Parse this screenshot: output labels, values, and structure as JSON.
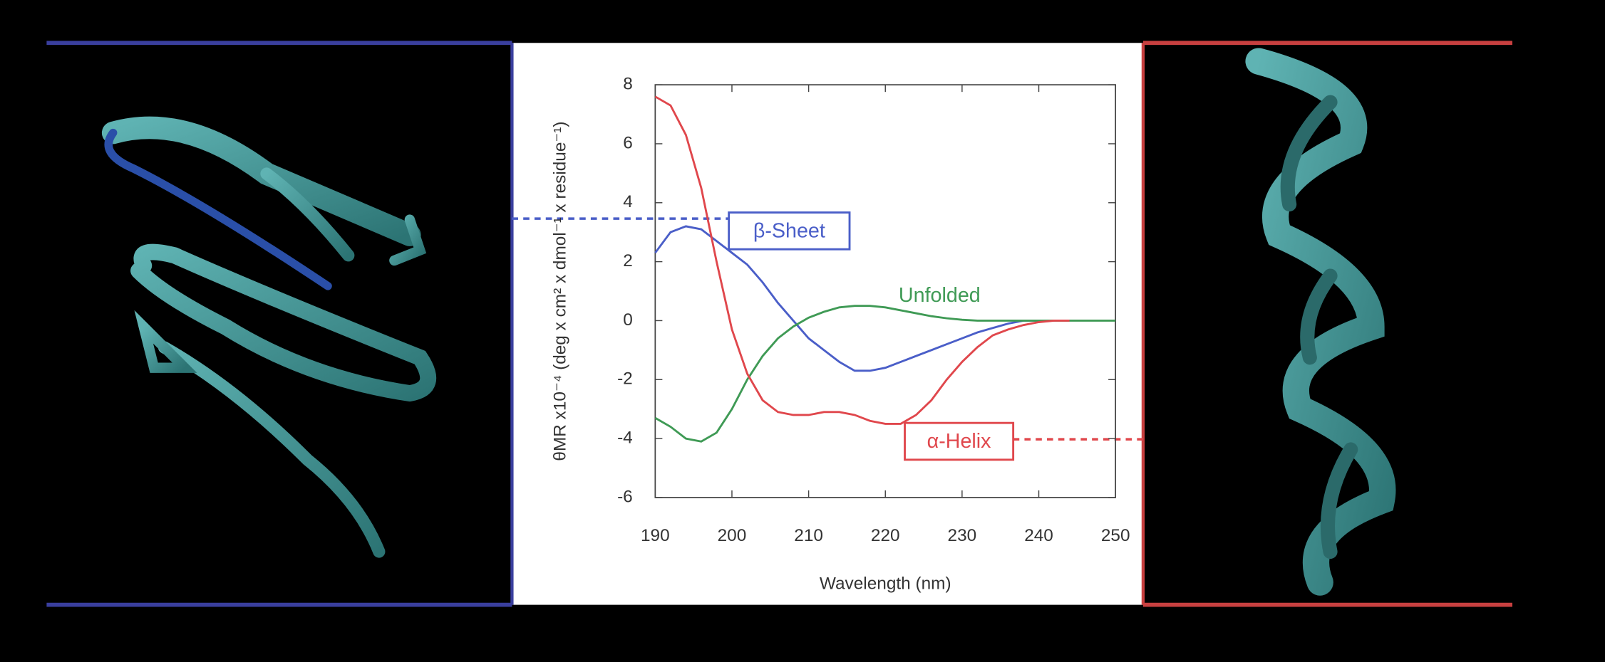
{
  "chart_data": {
    "type": "line",
    "xlabel": "Wavelength (nm)",
    "ylabel": "θMR x10⁻⁴ (deg x cm² x dmol⁻¹ x residue⁻¹)",
    "x": [
      190,
      192,
      194,
      196,
      198,
      200,
      202,
      204,
      206,
      208,
      210,
      212,
      214,
      216,
      218,
      220,
      222,
      224,
      226,
      228,
      230,
      232,
      234,
      236,
      238,
      240,
      242,
      244,
      246,
      248,
      250
    ],
    "series": [
      {
        "name": "β-Sheet",
        "color": "#4a5ec8",
        "values": [
          2.3,
          3.0,
          3.2,
          3.1,
          2.7,
          2.3,
          1.9,
          1.3,
          0.6,
          0,
          -0.6,
          -1.0,
          -1.4,
          -1.7,
          -1.7,
          -1.6,
          -1.4,
          -1.2,
          -1.0,
          -0.8,
          -0.6,
          -0.4,
          -0.25,
          -0.1,
          0,
          0,
          null,
          null,
          null,
          null,
          null
        ]
      },
      {
        "name": "Unfolded",
        "color": "#3f9a55",
        "values": [
          -3.3,
          -3.6,
          -4.0,
          -4.1,
          -3.8,
          -3.0,
          -2.0,
          -1.2,
          -0.6,
          -0.2,
          0.1,
          0.3,
          0.45,
          0.5,
          0.5,
          0.45,
          0.35,
          0.25,
          0.15,
          0.08,
          0.03,
          0,
          0,
          0,
          0,
          0,
          0,
          0,
          0,
          0,
          0
        ]
      },
      {
        "name": "α-Helix",
        "color": "#e0474c",
        "values": [
          7.6,
          7.3,
          6.3,
          4.5,
          2.0,
          -0.3,
          -1.8,
          -2.7,
          -3.1,
          -3.2,
          -3.2,
          -3.1,
          -3.1,
          -3.2,
          -3.4,
          -3.5,
          -3.5,
          -3.2,
          -2.7,
          -2.0,
          -1.4,
          -0.9,
          -0.5,
          -0.3,
          -0.15,
          -0.05,
          0,
          0,
          null,
          null,
          null
        ]
      }
    ],
    "xlim": [
      190,
      250
    ],
    "xticks": [
      190,
      200,
      210,
      220,
      230,
      240,
      250
    ],
    "ylim": [
      -6,
      8
    ],
    "yticks": [
      -6,
      -4,
      -2,
      0,
      2,
      4,
      6,
      8
    ]
  }
}
